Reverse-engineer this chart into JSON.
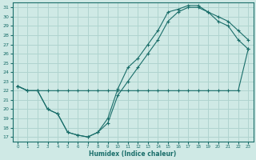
{
  "xlabel": "Humidex (Indice chaleur)",
  "bg_color": "#cfe9e5",
  "grid_color": "#b0d4cf",
  "line_color": "#1a6e6a",
  "xlim": [
    -0.5,
    23.5
  ],
  "ylim": [
    16.5,
    31.5
  ],
  "xticks": [
    0,
    1,
    2,
    3,
    4,
    5,
    6,
    7,
    8,
    9,
    10,
    11,
    12,
    13,
    14,
    15,
    16,
    17,
    18,
    19,
    20,
    21,
    22,
    23
  ],
  "yticks": [
    17,
    18,
    19,
    20,
    21,
    22,
    23,
    24,
    25,
    26,
    27,
    28,
    29,
    30,
    31
  ],
  "line1_x": [
    0,
    1,
    2,
    3,
    4,
    5,
    6,
    7,
    8,
    9,
    10,
    11,
    12,
    13,
    14,
    15,
    16,
    17,
    18,
    19,
    20,
    21,
    22,
    23
  ],
  "line1_y": [
    22.5,
    22,
    22,
    20,
    19.5,
    17.5,
    17.2,
    17.0,
    17.5,
    19.0,
    22.2,
    24.5,
    25.5,
    27.0,
    28.5,
    30.5,
    30.8,
    31.2,
    31.2,
    30.5,
    30.0,
    29.5,
    28.5,
    27.5
  ],
  "line2_x": [
    0,
    1,
    2,
    3,
    4,
    5,
    6,
    7,
    8,
    9,
    10,
    11,
    12,
    13,
    14,
    15,
    16,
    17,
    18,
    19,
    20,
    21,
    22,
    23
  ],
  "line2_y": [
    22.5,
    22,
    22,
    20,
    19.5,
    17.5,
    17.2,
    17.0,
    17.5,
    18.5,
    21.5,
    23.0,
    24.5,
    26.0,
    27.5,
    29.5,
    30.5,
    31.0,
    31.0,
    30.5,
    29.5,
    29.0,
    27.5,
    26.5
  ],
  "line3_x": [
    0,
    1,
    2,
    3,
    4,
    5,
    6,
    7,
    8,
    9,
    10,
    11,
    12,
    13,
    14,
    15,
    16,
    17,
    18,
    19,
    20,
    21,
    22,
    23
  ],
  "line3_y": [
    22.5,
    22.0,
    22.0,
    22.0,
    22.0,
    22.0,
    22.0,
    22.0,
    22.0,
    22.0,
    22.0,
    22.0,
    22.0,
    22.0,
    22.0,
    22.0,
    22.0,
    22.0,
    22.0,
    22.0,
    22.0,
    22.0,
    22.0,
    26.5
  ]
}
